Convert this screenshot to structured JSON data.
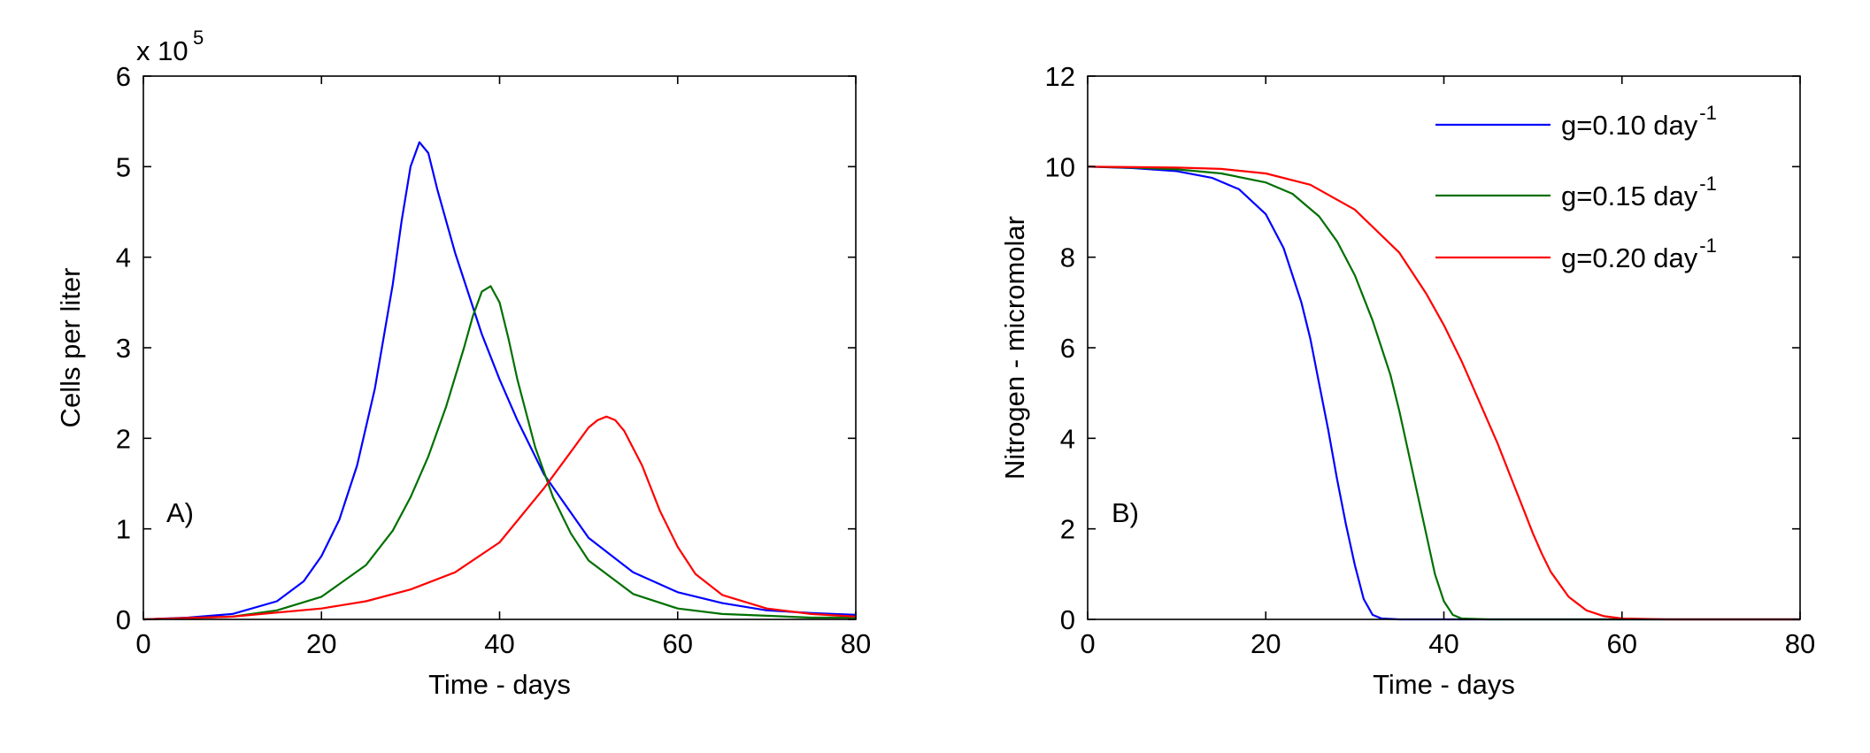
{
  "chart_data": [
    {
      "panel_label": "A)",
      "type": "line",
      "title": "",
      "xlabel": "Time - days",
      "ylabel": "Cells per liter",
      "y_multiplier_label": "x 10",
      "y_multiplier_exponent": "5",
      "xlim": [
        0,
        80
      ],
      "ylim": [
        0,
        6
      ],
      "xticks": [
        0,
        20,
        40,
        60,
        80
      ],
      "yticks": [
        0,
        1,
        2,
        3,
        4,
        5,
        6
      ],
      "grid": false,
      "series": [
        {
          "color": "#0000ff",
          "x": [
            0,
            5,
            10,
            15,
            18,
            20,
            22,
            24,
            26,
            28,
            29,
            30,
            31,
            32,
            33,
            35,
            38,
            40,
            42,
            45,
            50,
            55,
            60,
            65,
            70,
            75,
            80
          ],
          "y": [
            0,
            0.02,
            0.06,
            0.2,
            0.42,
            0.7,
            1.1,
            1.7,
            2.55,
            3.7,
            4.4,
            5.0,
            5.27,
            5.15,
            4.75,
            4.05,
            3.15,
            2.65,
            2.2,
            1.6,
            0.9,
            0.52,
            0.3,
            0.18,
            0.1,
            0.07,
            0.05
          ]
        },
        {
          "color": "#007000",
          "x": [
            0,
            10,
            15,
            20,
            25,
            28,
            30,
            32,
            34,
            36,
            37,
            38,
            39,
            40,
            41,
            42,
            44,
            46,
            48,
            50,
            55,
            60,
            65,
            70,
            75,
            80
          ],
          "y": [
            0,
            0.03,
            0.1,
            0.25,
            0.6,
            0.98,
            1.35,
            1.8,
            2.35,
            3.0,
            3.35,
            3.62,
            3.68,
            3.5,
            3.1,
            2.65,
            1.9,
            1.35,
            0.95,
            0.65,
            0.28,
            0.12,
            0.06,
            0.04,
            0.02,
            0.02
          ]
        },
        {
          "color": "#ff0000",
          "x": [
            0,
            10,
            20,
            25,
            30,
            35,
            40,
            45,
            48,
            50,
            51,
            52,
            53,
            54,
            56,
            58,
            60,
            62,
            65,
            70,
            75,
            80
          ],
          "y": [
            0,
            0.03,
            0.12,
            0.2,
            0.33,
            0.52,
            0.85,
            1.45,
            1.85,
            2.12,
            2.2,
            2.24,
            2.2,
            2.08,
            1.7,
            1.2,
            0.8,
            0.5,
            0.27,
            0.12,
            0.06,
            0.03
          ]
        }
      ]
    },
    {
      "panel_label": "B)",
      "type": "line",
      "title": "",
      "xlabel": "Time - days",
      "ylabel": "Nitrogen - micromolar",
      "xlim": [
        0,
        80
      ],
      "ylim": [
        0,
        12
      ],
      "xticks": [
        0,
        20,
        40,
        60,
        80
      ],
      "yticks": [
        0,
        2,
        4,
        6,
        8,
        10,
        12
      ],
      "grid": false,
      "legend_position": "top-right",
      "series": [
        {
          "name": "g=0.10 day",
          "name_superscript": "-1",
          "color": "#0000ff",
          "x": [
            0,
            5,
            10,
            14,
            17,
            20,
            22,
            24,
            25,
            26,
            27,
            28,
            29,
            30,
            31,
            32,
            33,
            35,
            40,
            60,
            80
          ],
          "y": [
            10,
            9.97,
            9.9,
            9.75,
            9.5,
            8.95,
            8.2,
            7.0,
            6.2,
            5.2,
            4.2,
            3.1,
            2.1,
            1.2,
            0.45,
            0.1,
            0.02,
            0,
            0,
            0,
            0
          ]
        },
        {
          "name": "g=0.15 day",
          "name_superscript": "-1",
          "color": "#007000",
          "x": [
            0,
            5,
            10,
            15,
            20,
            23,
            26,
            28,
            30,
            32,
            34,
            35,
            36,
            37,
            38,
            39,
            40,
            41,
            42,
            45,
            60,
            80
          ],
          "y": [
            10,
            9.98,
            9.94,
            9.85,
            9.65,
            9.4,
            8.9,
            8.35,
            7.6,
            6.6,
            5.4,
            4.6,
            3.7,
            2.8,
            1.9,
            1.0,
            0.4,
            0.1,
            0.02,
            0,
            0,
            0
          ]
        },
        {
          "name": "g=0.20 day",
          "name_superscript": "-1",
          "color": "#ff0000",
          "x": [
            0,
            10,
            15,
            20,
            25,
            30,
            35,
            38,
            40,
            42,
            44,
            46,
            48,
            49,
            50,
            51,
            52,
            54,
            56,
            58,
            60,
            65,
            80
          ],
          "y": [
            10,
            9.98,
            9.95,
            9.85,
            9.6,
            9.05,
            8.1,
            7.2,
            6.5,
            5.7,
            4.8,
            3.9,
            2.9,
            2.4,
            1.9,
            1.45,
            1.05,
            0.5,
            0.2,
            0.07,
            0.02,
            0,
            0
          ]
        }
      ]
    }
  ]
}
